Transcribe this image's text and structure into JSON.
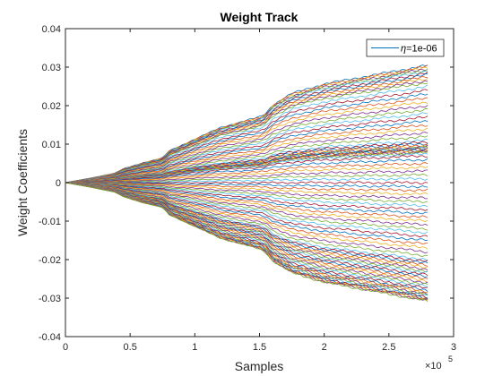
{
  "chart_data": {
    "type": "line",
    "title": "Weight Track",
    "xlabel": "Samples",
    "ylabel": "Weight Coefficients",
    "xlim": [
      0,
      300000
    ],
    "ylim": [
      -0.04,
      0.04
    ],
    "x_ticks": [
      0,
      0.5,
      1,
      1.5,
      2,
      2.5,
      3
    ],
    "x_tick_labels": [
      "0",
      "0.5",
      "1",
      "1.5",
      "2",
      "2.5",
      "3"
    ],
    "x_exponent_base": "×10",
    "x_exponent_power": "5",
    "y_ticks": [
      -0.04,
      -0.03,
      -0.02,
      -0.01,
      0,
      0.01,
      0.02,
      0.03,
      0.04
    ],
    "y_tick_labels": [
      "-0.04",
      "-0.03",
      "-0.02",
      "-0.01",
      "0",
      "0.01",
      "0.02",
      "0.03",
      "0.04"
    ],
    "grid": false,
    "legend": {
      "position": "top-right",
      "label_symbol": "η",
      "label_text": "=1e-06",
      "color": "#0072BD"
    },
    "x_data_max": 280000,
    "num_series": 96,
    "series_color_order": [
      "#0072BD",
      "#D95319",
      "#EDB120",
      "#7E2F8E",
      "#77AC30",
      "#4DBEEE",
      "#A2142F"
    ],
    "series_final_values": [
      0.0305,
      0.0302,
      0.0299,
      0.0296,
      0.0293,
      0.029,
      0.0285,
      0.028,
      0.0275,
      0.027,
      0.0265,
      0.026,
      0.025,
      0.024,
      0.023,
      0.022,
      0.021,
      0.02,
      0.019,
      0.018,
      0.017,
      0.016,
      0.015,
      0.014,
      0.013,
      0.012,
      0.011,
      0.0105,
      0.0101,
      0.0098,
      0.0095,
      0.0093,
      0.0091,
      0.009,
      0.0088,
      0.0086,
      0.0084,
      0.0082,
      0.008,
      0.0078,
      0.0075,
      0.007,
      0.006,
      0.005,
      0.004,
      0.003,
      0.002,
      0.001,
      0.0,
      -0.001,
      -0.002,
      -0.003,
      -0.004,
      -0.005,
      -0.006,
      -0.007,
      -0.008,
      -0.009,
      -0.01,
      -0.011,
      -0.012,
      -0.013,
      -0.014,
      -0.015,
      -0.016,
      -0.017,
      -0.018,
      -0.019,
      -0.02,
      -0.0205,
      -0.021,
      -0.0215,
      -0.022,
      -0.0225,
      -0.023,
      -0.0235,
      -0.024,
      -0.0245,
      -0.025,
      -0.0255,
      -0.026,
      -0.0265,
      -0.027,
      -0.0275,
      -0.028,
      -0.0283,
      -0.0286,
      -0.0289,
      -0.0292,
      -0.0295,
      -0.0298,
      -0.03,
      -0.0302,
      -0.0304,
      -0.0306,
      -0.0308
    ],
    "growth_profile": {
      "x": [
        0,
        20000,
        38000,
        45000,
        60000,
        75000,
        80000,
        100000,
        120000,
        140000,
        150000,
        155000,
        160000,
        175000,
        200000,
        230000,
        260000,
        280000
      ],
      "fraction": [
        0,
        0.04,
        0.08,
        0.12,
        0.17,
        0.21,
        0.27,
        0.37,
        0.47,
        0.53,
        0.56,
        0.59,
        0.66,
        0.76,
        0.84,
        0.9,
        0.96,
        1.0
      ]
    }
  }
}
